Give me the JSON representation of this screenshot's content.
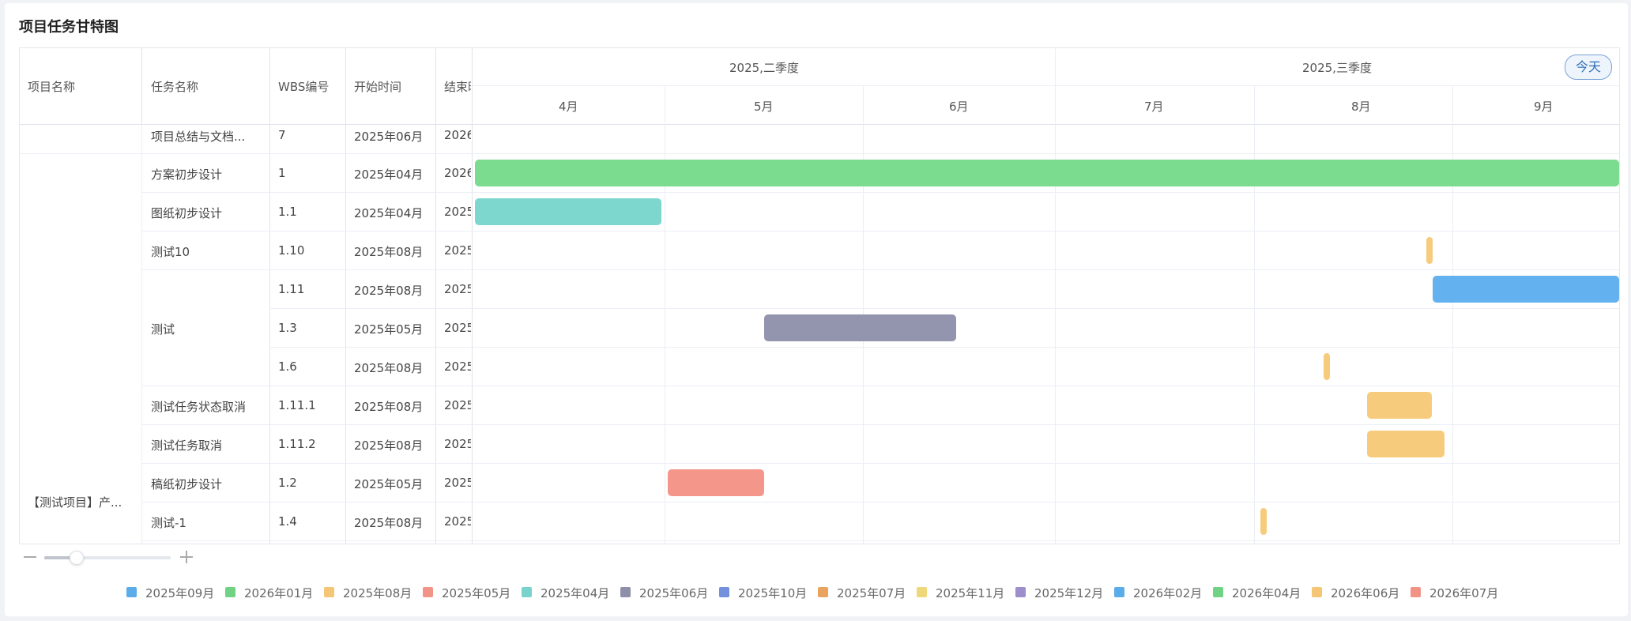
{
  "page": {
    "title": "项目任务甘特图"
  },
  "columns": {
    "project": "项目名称",
    "task": "任务名称",
    "wbs": "WBS编号",
    "start": "开始时间",
    "end": "结束时间"
  },
  "quarters": [
    "2025,二季度",
    "2025,三季度"
  ],
  "months": [
    "4月",
    "5月",
    "6月",
    "7月",
    "8月",
    "9月"
  ],
  "today_label": "今天",
  "project_group": {
    "name": "【测试项目】产..."
  },
  "rows": [
    {
      "task": "项目总结与文档...",
      "wbs": "7",
      "start": "2025年06月",
      "end": "2026",
      "bar_color": ""
    },
    {
      "task": "方案初步设计",
      "wbs": "1",
      "start": "2025年04月",
      "end": "2026",
      "bar_color": "#7bdb8f"
    },
    {
      "task": "图纸初步设计",
      "wbs": "1.1",
      "start": "2025年04月",
      "end": "2025",
      "bar_color": "#7dd7cf"
    },
    {
      "task": "测试10",
      "wbs": "1.10",
      "start": "2025年08月",
      "end": "2025",
      "bar_color": "#f7cb7c"
    },
    {
      "task": "",
      "wbs": "1.11",
      "start": "2025年08月",
      "end": "2025",
      "bar_color": "#63b1ee"
    },
    {
      "task": "测试",
      "wbs": "1.3",
      "start": "2025年05月",
      "end": "2025",
      "bar_color": "#9394ad"
    },
    {
      "task": "",
      "wbs": "1.6",
      "start": "2025年08月",
      "end": "2025",
      "bar_color": "#f7cb7c"
    },
    {
      "task": "测试任务状态取消",
      "wbs": "1.11.1",
      "start": "2025年08月",
      "end": "2025",
      "bar_color": "#f7cb7c"
    },
    {
      "task": "测试任务取消",
      "wbs": "1.11.2",
      "start": "2025年08月",
      "end": "2025",
      "bar_color": "#f7cb7c"
    },
    {
      "task": "稿纸初步设计",
      "wbs": "1.2",
      "start": "2025年05月",
      "end": "2025",
      "bar_color": "#f5968b"
    },
    {
      "task": "测试-1",
      "wbs": "1.4",
      "start": "2025年08月",
      "end": "2025",
      "bar_color": "#f7cb7c"
    }
  ],
  "legend": [
    {
      "label": "2025年09月",
      "color": "#5aade9"
    },
    {
      "label": "2026年01月",
      "color": "#6fd383"
    },
    {
      "label": "2025年08月",
      "color": "#f5c676"
    },
    {
      "label": "2025年05月",
      "color": "#f19487"
    },
    {
      "label": "2025年04月",
      "color": "#79d3cc"
    },
    {
      "label": "2025年06月",
      "color": "#8e8fa8"
    },
    {
      "label": "2025年10月",
      "color": "#7391dc"
    },
    {
      "label": "2025年07月",
      "color": "#e9a35e"
    },
    {
      "label": "2025年11月",
      "color": "#eed879"
    },
    {
      "label": "2025年12月",
      "color": "#9c8fcc"
    },
    {
      "label": "2026年02月",
      "color": "#5aade9"
    },
    {
      "label": "2026年04月",
      "color": "#6fd383"
    },
    {
      "label": "2026年06月",
      "color": "#f5c676"
    },
    {
      "label": "2026年07月",
      "color": "#f19487"
    }
  ]
}
